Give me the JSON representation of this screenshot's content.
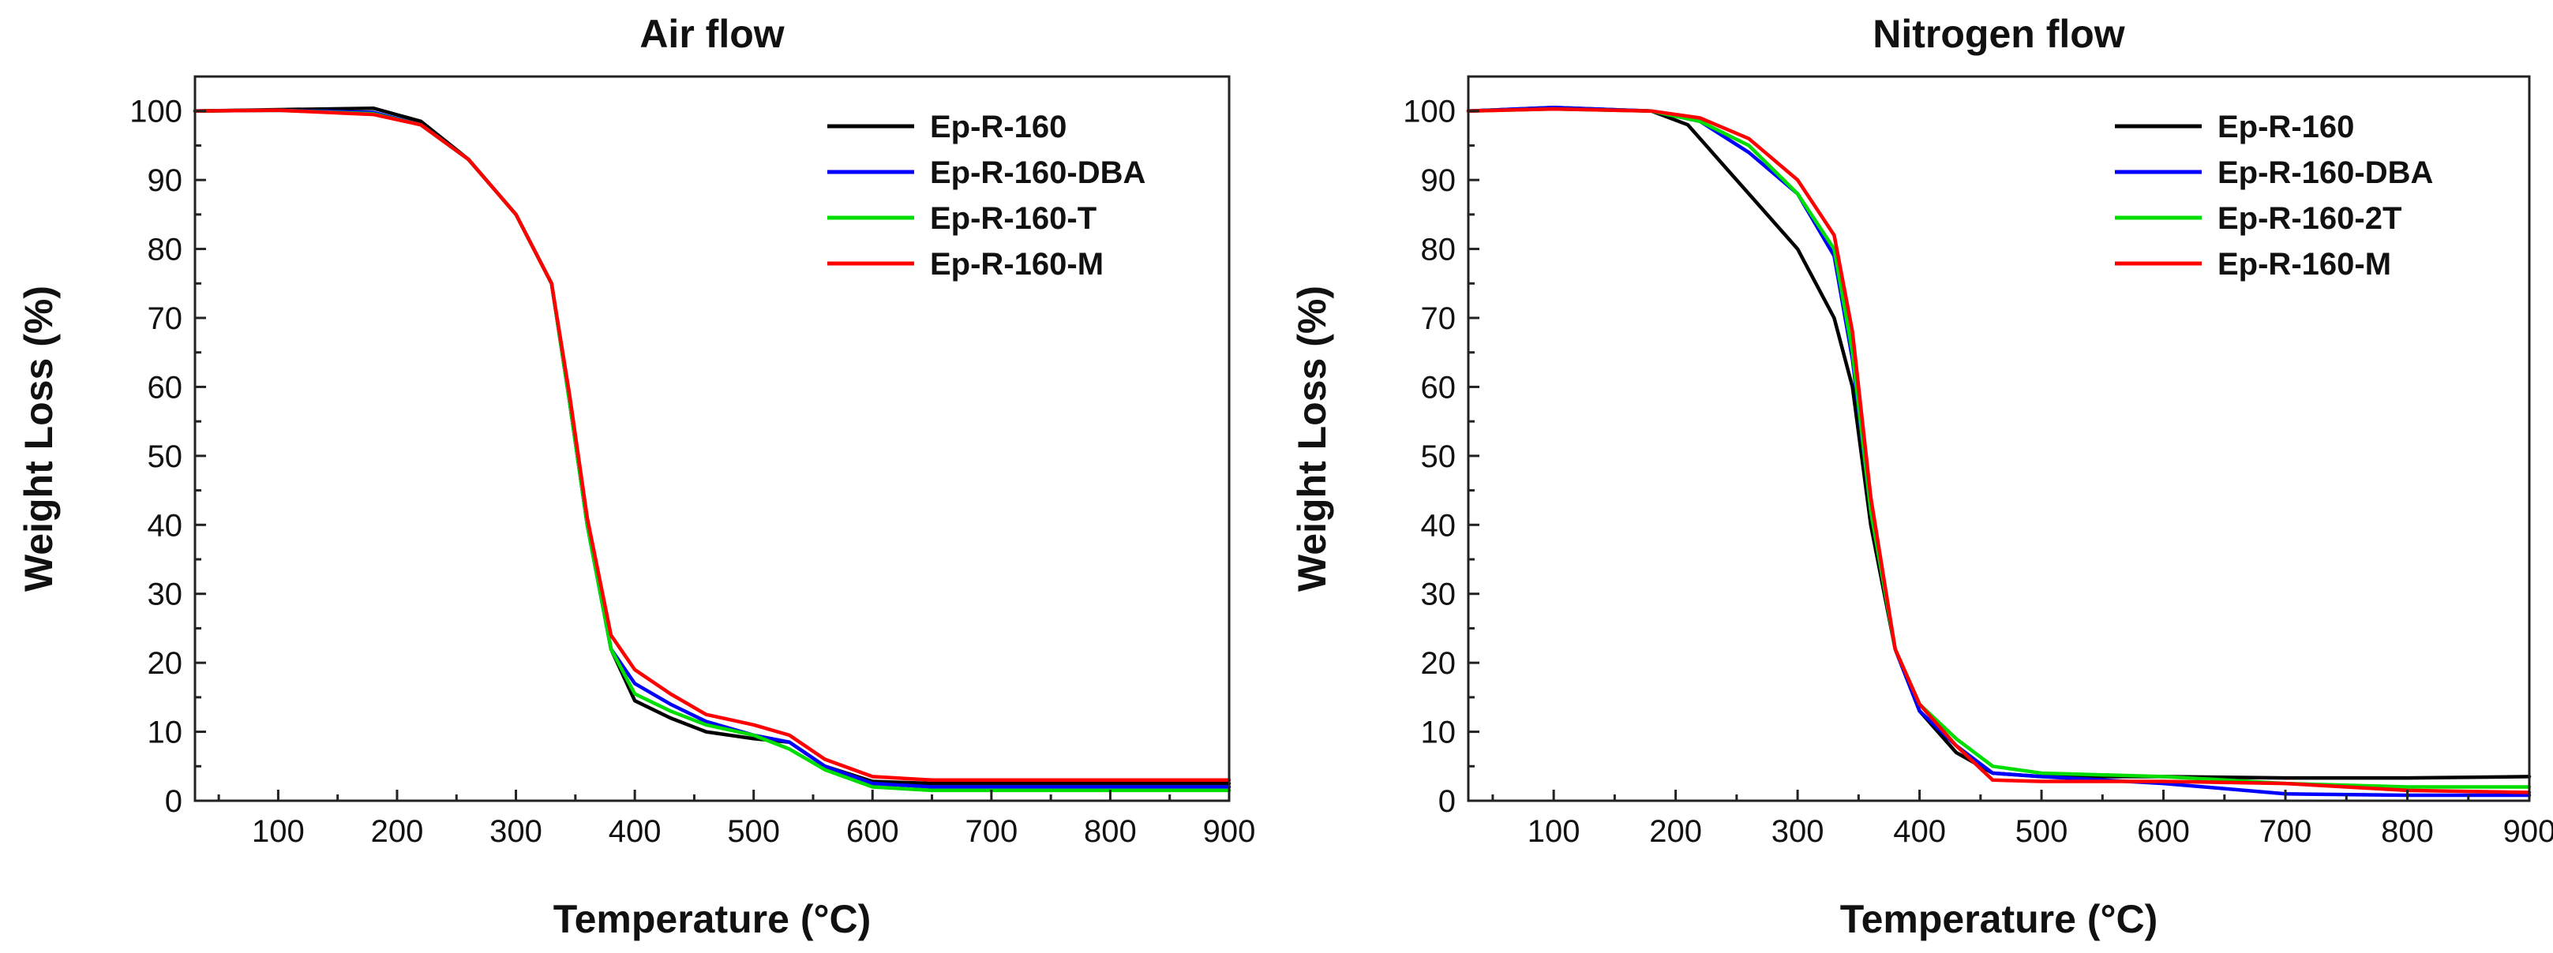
{
  "chart_data": [
    {
      "type": "line",
      "title": "Air flow",
      "xlabel": "Temperature (°C)",
      "ylabel": "Weight Loss (%)",
      "xlim": [
        30,
        900
      ],
      "ylim": [
        0,
        105
      ],
      "xticks": [
        100,
        200,
        300,
        400,
        500,
        600,
        700,
        800,
        900
      ],
      "yticks": [
        0,
        10,
        20,
        30,
        40,
        50,
        60,
        70,
        80,
        90,
        100
      ],
      "legend_position": "top-right",
      "series": [
        {
          "name": "Ep-R-160",
          "color": "#000000",
          "x": [
            30,
            100,
            180,
            220,
            260,
            300,
            330,
            345,
            360,
            380,
            400,
            430,
            460,
            500,
            530,
            560,
            600,
            650,
            700,
            800,
            900
          ],
          "y": [
            100,
            100.2,
            100.4,
            98.5,
            93,
            85,
            75,
            58,
            40,
            22,
            14.5,
            12,
            10,
            9,
            8.5,
            5,
            2.8,
            2.5,
            2.5,
            2.5,
            2.5
          ]
        },
        {
          "name": "Ep-R-160-DBA",
          "color": "#0000ff",
          "x": [
            30,
            100,
            180,
            220,
            260,
            300,
            330,
            345,
            360,
            380,
            400,
            430,
            460,
            500,
            530,
            560,
            600,
            650,
            700,
            800,
            900
          ],
          "y": [
            100,
            100.1,
            99.8,
            98,
            93,
            85,
            75,
            58,
            40,
            22,
            17,
            14,
            11.5,
            9.5,
            8.5,
            5,
            2.5,
            2,
            2,
            2,
            2
          ]
        },
        {
          "name": "Ep-R-160-T",
          "color": "#00dd00",
          "x": [
            30,
            100,
            180,
            220,
            260,
            300,
            330,
            345,
            360,
            380,
            400,
            430,
            460,
            500,
            530,
            560,
            600,
            650,
            700,
            800,
            900
          ],
          "y": [
            100,
            100.1,
            99.6,
            98,
            93,
            85,
            75,
            58,
            40,
            22,
            15.5,
            13,
            11,
            9.5,
            7.5,
            4.5,
            2,
            1.5,
            1.5,
            1.5,
            1.5
          ]
        },
        {
          "name": "Ep-R-160-M",
          "color": "#ff0000",
          "x": [
            30,
            100,
            180,
            220,
            260,
            300,
            330,
            345,
            360,
            380,
            400,
            430,
            460,
            500,
            530,
            560,
            600,
            650,
            700,
            800,
            900
          ],
          "y": [
            100,
            100.1,
            99.5,
            98,
            93,
            85,
            75,
            59,
            41,
            24,
            19,
            15.5,
            12.5,
            11,
            9.5,
            6,
            3.5,
            3,
            3,
            3,
            3
          ]
        }
      ]
    },
    {
      "type": "line",
      "title": "Nitrogen flow",
      "xlabel": "Temperature (°C)",
      "ylabel": "Weight Loss (%)",
      "xlim": [
        30,
        900
      ],
      "ylim": [
        0,
        105
      ],
      "xticks": [
        100,
        200,
        300,
        400,
        500,
        600,
        700,
        800,
        900
      ],
      "yticks": [
        0,
        10,
        20,
        30,
        40,
        50,
        60,
        70,
        80,
        90,
        100
      ],
      "legend_position": "top-right",
      "series": [
        {
          "name": "Ep-R-160",
          "color": "#000000",
          "x": [
            30,
            100,
            180,
            210,
            240,
            270,
            300,
            330,
            345,
            360,
            380,
            400,
            430,
            460,
            500,
            600,
            700,
            800,
            900
          ],
          "y": [
            100,
            100.5,
            100,
            98,
            92,
            86,
            80,
            70,
            60,
            40,
            22,
            13,
            7,
            4,
            3.5,
            3.5,
            3.3,
            3.3,
            3.5
          ]
        },
        {
          "name": "Ep-R-160-DBA",
          "color": "#0000ff",
          "x": [
            30,
            100,
            180,
            220,
            260,
            300,
            330,
            345,
            360,
            380,
            400,
            430,
            460,
            500,
            600,
            700,
            800,
            900
          ],
          "y": [
            100,
            100.5,
            100,
            98.5,
            94,
            88,
            79,
            64,
            42,
            22,
            13,
            8,
            4,
            3.5,
            2.5,
            1,
            0.8,
            0.8
          ]
        },
        {
          "name": "Ep-R-160-2T",
          "color": "#00dd00",
          "x": [
            30,
            100,
            180,
            220,
            260,
            300,
            330,
            345,
            360,
            380,
            400,
            430,
            460,
            500,
            600,
            700,
            800,
            900
          ],
          "y": [
            100,
            100.3,
            100,
            98.5,
            95,
            88,
            80,
            65,
            42,
            22,
            14,
            9,
            5,
            4,
            3.5,
            2.5,
            2,
            2
          ]
        },
        {
          "name": "Ep-R-160-M",
          "color": "#ff0000",
          "x": [
            30,
            100,
            180,
            220,
            260,
            300,
            330,
            345,
            360,
            380,
            400,
            430,
            460,
            500,
            600,
            700,
            800,
            900
          ],
          "y": [
            100,
            100.3,
            100,
            99,
            96,
            90,
            82,
            68,
            44,
            22,
            14,
            8,
            3,
            2.8,
            2.8,
            2.5,
            1.5,
            1.2
          ]
        }
      ]
    }
  ]
}
